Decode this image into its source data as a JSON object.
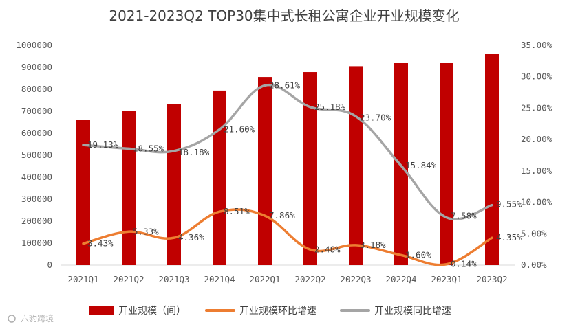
{
  "chart_data": {
    "type": "bar+line",
    "title": "2021-2023Q2 TOP30集中式长租公寓企业开业规模变化",
    "categories": [
      "2021Q1",
      "2021Q2",
      "2021Q3",
      "2021Q4",
      "2022Q1",
      "2022Q2",
      "2022Q3",
      "2022Q4",
      "2023Q1",
      "2023Q2"
    ],
    "y_left": {
      "min": 0,
      "max": 1000000,
      "step": 100000,
      "tick_labels": [
        "0",
        "100000",
        "200000",
        "300000",
        "400000",
        "500000",
        "600000",
        "700000",
        "800000",
        "900000",
        "1000000"
      ]
    },
    "y_right": {
      "min": 0,
      "max": 35,
      "step": 5,
      "tick_labels": [
        "0.00%",
        "5.00%",
        "10.00%",
        "15.00%",
        "20.00%",
        "25.00%",
        "30.00%",
        "35.00%"
      ]
    },
    "series": [
      {
        "name": "开业规模（间）",
        "type": "bar",
        "axis": "left",
        "color": "#c00000",
        "values": [
          662000,
          700000,
          732000,
          794000,
          856000,
          878000,
          905000,
          920000,
          921000,
          961000
        ]
      },
      {
        "name": "开业规模环比增速",
        "type": "line",
        "axis": "right",
        "color": "#ed7d31",
        "values": [
          3.43,
          5.33,
          4.36,
          8.51,
          7.86,
          2.48,
          3.18,
          1.6,
          0.14,
          4.35
        ],
        "labels": [
          "3.43%",
          "5.33%",
          "4.36%",
          "8.51%",
          "7.86%",
          "2.48%",
          "3.18%",
          "1.60%",
          "0.14%",
          "4.35%"
        ]
      },
      {
        "name": "开业规模同比增速",
        "type": "line",
        "axis": "right",
        "color": "#a5a5a5",
        "values": [
          19.13,
          18.55,
          18.18,
          21.6,
          28.61,
          25.18,
          23.7,
          15.84,
          7.58,
          9.55
        ],
        "labels": [
          "19.13%",
          "18.55%",
          "18.18%",
          "21.60%",
          "28.61%",
          "25.18%",
          "23.70%",
          "15.84%",
          "7.58%",
          "9.55%"
        ]
      }
    ],
    "legend": [
      "开业规模（间）",
      "开业规模环比增速",
      "开业规模同比增速"
    ],
    "legend_position": "bottom",
    "grid": false
  },
  "watermark": "六豹跨境",
  "colors": {
    "bar": "#c00000",
    "mom": "#ed7d31",
    "yoy": "#a5a5a5",
    "axis_text": "#595959"
  }
}
